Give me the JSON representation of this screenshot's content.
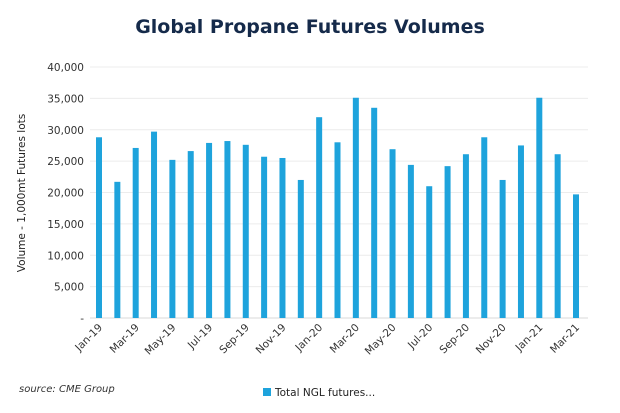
{
  "chart_data": {
    "type": "bar",
    "title": "Global Propane Futures Volumes",
    "ylabel": "Volume - 1,000mt Futures lots",
    "xlabel": "",
    "ylim": [
      0,
      40000
    ],
    "yticks": [
      "-",
      "5,000",
      "10,000",
      "15,000",
      "20,000",
      "25,000",
      "30,000",
      "35,000",
      "40,000"
    ],
    "grid": true,
    "legend": "bottom",
    "color": "#1ea3dc",
    "categories": [
      "Jan-19",
      "Feb-19",
      "Mar-19",
      "Apr-19",
      "May-19",
      "Jun-19",
      "Jul-19",
      "Aug-19",
      "Sep-19",
      "Oct-19",
      "Nov-19",
      "Dec-19",
      "Jan-20",
      "Feb-20",
      "Mar-20",
      "Apr-20",
      "May-20",
      "Jun-20",
      "Jul-20",
      "Aug-20",
      "Sep-20",
      "Oct-20",
      "Nov-20",
      "Dec-20",
      "Jan-21",
      "Feb-21",
      "Mar-21"
    ],
    "xticklabels": [
      "Jan-19",
      "Mar-19",
      "May-19",
      "Jul-19",
      "Sep-19",
      "Nov-19",
      "Jan-20",
      "Mar-20",
      "May-20",
      "Jul-20",
      "Sep-20",
      "Nov-20",
      "Jan-21",
      "Mar-21"
    ],
    "series": [
      {
        "name": "Total NGL futures...",
        "values": [
          28800,
          21700,
          27100,
          29700,
          25200,
          26600,
          27900,
          28200,
          27600,
          25700,
          25500,
          22000,
          32000,
          28000,
          35100,
          33500,
          26900,
          24400,
          21000,
          24200,
          26100,
          28800,
          22000,
          27500,
          35100,
          26100,
          19700
        ]
      }
    ]
  },
  "source": "source: CME Group"
}
